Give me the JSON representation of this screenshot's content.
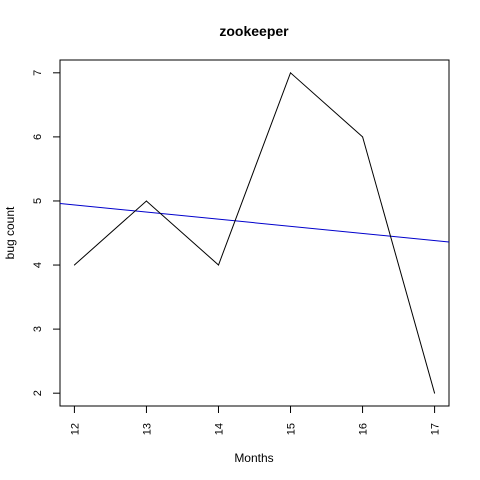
{
  "chart_data": {
    "type": "line",
    "title": "zookeeper",
    "xlabel": "Months",
    "ylabel": "bug count",
    "x": [
      12,
      13,
      14,
      15,
      16,
      17
    ],
    "xlim": [
      11.8,
      17.2
    ],
    "ylim": [
      1.8,
      7.2
    ],
    "x_ticks": [
      12,
      13,
      14,
      15,
      16,
      17
    ],
    "y_ticks": [
      2,
      3,
      4,
      5,
      6,
      7
    ],
    "series": [
      {
        "values": [
          4,
          5,
          4,
          7,
          6,
          2
        ],
        "color": "#000000"
      }
    ],
    "trend_line": {
      "type": "linear",
      "at_x_min": 4.96,
      "at_x_max": 4.36,
      "color": "#0000cc"
    },
    "grid": false,
    "legend": "none"
  }
}
